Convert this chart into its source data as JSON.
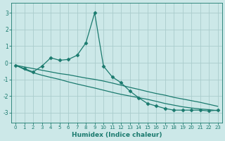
{
  "bg_color": "#cce8e8",
  "grid_color": "#aacccc",
  "line_color": "#1a7a6e",
  "xlabel": "Humidex (Indice chaleur)",
  "xlim": [
    -0.5,
    23.5
  ],
  "ylim": [
    -3.6,
    3.6
  ],
  "yticks": [
    -3,
    -2,
    -1,
    0,
    1,
    2,
    3
  ],
  "xticks": [
    0,
    1,
    2,
    3,
    4,
    5,
    6,
    7,
    8,
    9,
    10,
    11,
    12,
    13,
    14,
    15,
    16,
    17,
    18,
    19,
    20,
    21,
    22,
    23
  ],
  "series": [
    {
      "x": [
        0,
        1,
        2,
        3,
        4,
        5,
        6,
        7,
        8,
        9,
        10,
        11,
        12,
        13,
        14,
        15,
        16,
        17,
        18,
        19,
        20,
        21,
        22,
        23
      ],
      "y": [
        -0.15,
        -0.35,
        -0.55,
        -0.2,
        0.3,
        0.15,
        0.2,
        0.45,
        1.2,
        3.0,
        -0.2,
        -0.85,
        -1.2,
        -1.7,
        -2.1,
        -2.45,
        -2.6,
        -2.75,
        -2.85,
        -2.85,
        -2.85,
        -2.85,
        -2.9,
        -2.85
      ],
      "marker": "D",
      "markersize": 2.5,
      "lw": 0.9
    },
    {
      "x": [
        0,
        1,
        2,
        3,
        4,
        5,
        6,
        7,
        8,
        9,
        10,
        11,
        12,
        13,
        14,
        15,
        16,
        17,
        18,
        19,
        20,
        21,
        22,
        23
      ],
      "y": [
        -0.15,
        -0.25,
        -0.35,
        -0.45,
        -0.55,
        -0.65,
        -0.72,
        -0.82,
        -0.92,
        -1.0,
        -1.1,
        -1.22,
        -1.35,
        -1.48,
        -1.6,
        -1.73,
        -1.85,
        -1.95,
        -2.08,
        -2.18,
        -2.28,
        -2.38,
        -2.5,
        -2.62
      ],
      "marker": null,
      "lw": 0.9
    },
    {
      "x": [
        0,
        1,
        2,
        3,
        4,
        5,
        6,
        7,
        8,
        9,
        10,
        11,
        12,
        13,
        14,
        15,
        16,
        17,
        18,
        19,
        20,
        21,
        22,
        23
      ],
      "y": [
        -0.15,
        -0.4,
        -0.6,
        -0.75,
        -0.88,
        -1.0,
        -1.15,
        -1.28,
        -1.4,
        -1.52,
        -1.65,
        -1.78,
        -1.9,
        -2.0,
        -2.1,
        -2.2,
        -2.32,
        -2.45,
        -2.55,
        -2.65,
        -2.72,
        -2.78,
        -2.82,
        -2.88
      ],
      "marker": null,
      "lw": 0.9
    }
  ]
}
